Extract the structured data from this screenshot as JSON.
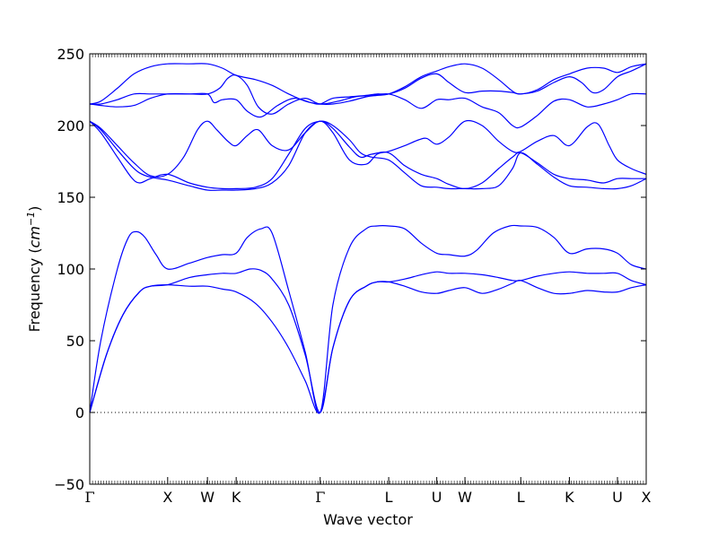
{
  "chart_data": {
    "type": "line",
    "xlabel": "Wave vector",
    "ylabel_text": "Frequency (",
    "ylabel_unit": "cm",
    "ylabel_exp": "−1",
    "ylabel_close": ")",
    "ylim": [
      -50,
      250
    ],
    "yticks": [
      -50,
      0,
      50,
      100,
      150,
      200,
      250
    ],
    "xlim": [
      0,
      10.07
    ],
    "xticks": [
      {
        "label": "Γ",
        "x": 0.0
      },
      {
        "label": "X",
        "x": 1.41
      },
      {
        "label": "W",
        "x": 2.13
      },
      {
        "label": "K",
        "x": 2.65
      },
      {
        "label": "Γ",
        "x": 4.17
      },
      {
        "label": "L",
        "x": 5.41
      },
      {
        "label": "U",
        "x": 6.28
      },
      {
        "label": "W",
        "x": 6.79
      },
      {
        "label": "L",
        "x": 7.8
      },
      {
        "label": "K",
        "x": 8.68
      },
      {
        "label": "U",
        "x": 9.55
      },
      {
        "label": "X",
        "x": 10.07
      }
    ],
    "zero_line": {
      "y": 0,
      "style": "dotted"
    },
    "grid": false,
    "line_color": "#0000ff",
    "series": [
      {
        "x": [
          0,
          0.3,
          0.6,
          0.9,
          1.1,
          1.41,
          1.8,
          2.13,
          2.4,
          2.65,
          3.0,
          3.3,
          3.6,
          3.9,
          4.17,
          4.4,
          4.7,
          5.0,
          5.2,
          5.41,
          5.7,
          6.0,
          6.28,
          6.5,
          6.79,
          7.1,
          7.4,
          7.65,
          7.8,
          8.1,
          8.4,
          8.68,
          9.0,
          9.3,
          9.55,
          9.8,
          10.07
        ],
        "y": [
          0,
          40,
          68,
          84,
          88,
          89,
          88,
          88,
          86,
          84,
          76,
          63,
          45,
          22,
          0,
          45,
          78,
          88,
          91,
          91,
          88,
          84,
          83,
          85,
          87,
          83,
          86,
          90,
          92,
          87,
          83,
          83,
          85,
          84,
          84,
          87,
          89
        ]
      },
      {
        "x": [
          0,
          0.3,
          0.6,
          0.9,
          1.1,
          1.41,
          1.8,
          2.13,
          2.4,
          2.65,
          2.9,
          3.1,
          3.3,
          3.6,
          3.9,
          4.17,
          4.4,
          4.7,
          5.0,
          5.2,
          5.41,
          5.7,
          6.0,
          6.28,
          6.5,
          6.79,
          7.1,
          7.4,
          7.65,
          7.8,
          8.1,
          8.4,
          8.68,
          9.0,
          9.3,
          9.55,
          9.8,
          10.07
        ],
        "y": [
          0,
          40,
          68,
          84,
          88,
          89,
          94,
          96,
          97,
          97,
          100,
          99,
          93,
          75,
          40,
          0,
          45,
          78,
          88,
          91,
          91,
          93,
          96,
          98,
          97,
          97,
          96,
          94,
          92,
          92,
          95,
          97,
          98,
          97,
          97,
          97,
          92,
          89
        ]
      },
      {
        "x": [
          0,
          0.2,
          0.5,
          0.7,
          0.85,
          1.0,
          1.2,
          1.41,
          1.8,
          2.13,
          2.4,
          2.65,
          2.85,
          3.1,
          3.3,
          3.6,
          3.9,
          4.17,
          4.4,
          4.7,
          5.0,
          5.2,
          5.41,
          5.7,
          6.0,
          6.28,
          6.5,
          6.79,
          7.0,
          7.3,
          7.6,
          7.8,
          8.1,
          8.4,
          8.68,
          9.0,
          9.3,
          9.55,
          9.8,
          10.07
        ],
        "y": [
          0,
          50,
          100,
          122,
          126,
          122,
          110,
          100,
          104,
          108,
          110,
          111,
          122,
          128,
          125,
          85,
          42,
          0,
          75,
          115,
          128,
          130,
          130,
          128,
          118,
          111,
          110,
          109,
          113,
          125,
          130,
          130,
          129,
          122,
          111,
          114,
          114,
          111,
          103,
          100
        ]
      },
      {
        "x": [
          0,
          0.2,
          0.5,
          0.75,
          0.9,
          1.1,
          1.41,
          1.8,
          2.13,
          2.4,
          2.65,
          3.0,
          3.3,
          3.6,
          3.9,
          4.17,
          4.4,
          4.7,
          4.9,
          5.1,
          5.41,
          5.7,
          6.0,
          6.28,
          6.5,
          6.79,
          7.1,
          7.4,
          7.65,
          7.8,
          8.1,
          8.4,
          8.68,
          9.0,
          9.3,
          9.55,
          9.8,
          10.07
        ],
        "y": [
          203,
          195,
          178,
          164,
          160,
          163,
          166,
          160,
          157,
          156,
          156,
          157,
          163,
          180,
          198,
          203,
          200,
          190,
          181,
          178,
          176,
          167,
          158,
          157,
          156,
          156,
          156,
          158,
          170,
          181,
          173,
          164,
          158,
          157,
          156,
          156,
          158,
          163
        ]
      },
      {
        "x": [
          0,
          0.2,
          0.5,
          0.75,
          0.9,
          1.1,
          1.41,
          1.8,
          2.13,
          2.4,
          2.65,
          3.0,
          3.3,
          3.6,
          3.9,
          4.17,
          4.4,
          4.7,
          4.9,
          5.1,
          5.41,
          5.7,
          6.0,
          6.28,
          6.5,
          6.79,
          7.1,
          7.4,
          7.65,
          7.8,
          8.1,
          8.4,
          8.68,
          9.0,
          9.3,
          9.55,
          9.8,
          10.07
        ],
        "y": [
          203,
          197,
          183,
          172,
          167,
          164,
          162,
          158,
          155,
          155,
          155,
          156,
          160,
          172,
          195,
          203,
          198,
          185,
          178,
          180,
          181,
          172,
          166,
          163,
          159,
          156,
          160,
          170,
          178,
          181,
          174,
          166,
          163,
          162,
          160,
          163,
          163,
          163
        ]
      },
      {
        "x": [
          0,
          0.2,
          0.5,
          0.8,
          1.1,
          1.41,
          1.7,
          1.95,
          2.13,
          2.3,
          2.5,
          2.65,
          2.85,
          3.05,
          3.3,
          3.6,
          3.9,
          4.17,
          4.4,
          4.7,
          5.0,
          5.2,
          5.41,
          5.7,
          5.95,
          6.1,
          6.28,
          6.5,
          6.79,
          7.1,
          7.4,
          7.65,
          7.8,
          8.1,
          8.4,
          8.68,
          9.0,
          9.2,
          9.4,
          9.55,
          9.8,
          10.07
        ],
        "y": [
          203,
          198,
          186,
          174,
          165,
          166,
          178,
          197,
          203,
          197,
          189,
          186,
          193,
          197,
          186,
          183,
          195,
          203,
          195,
          176,
          173,
          180,
          182,
          186,
          190,
          191,
          187,
          192,
          203,
          200,
          189,
          182,
          182,
          189,
          193,
          186,
          199,
          201,
          186,
          176,
          170,
          166
        ]
      },
      {
        "x": [
          0,
          0.2,
          0.5,
          0.8,
          1.1,
          1.41,
          1.8,
          2.13,
          2.35,
          2.5,
          2.65,
          2.85,
          3.05,
          3.3,
          3.6,
          3.9,
          4.17,
          4.5,
          4.8,
          5.1,
          5.41,
          5.7,
          6.0,
          6.28,
          6.5,
          6.79,
          7.1,
          7.4,
          7.65,
          7.8,
          8.1,
          8.4,
          8.68,
          9.0,
          9.3,
          9.55,
          9.8,
          10.07
        ],
        "y": [
          215,
          214,
          213,
          214,
          219,
          222,
          222,
          222,
          226,
          233,
          235,
          228,
          213,
          208,
          215,
          219,
          215,
          217,
          220,
          221,
          222,
          218,
          212,
          218,
          218,
          219,
          213,
          209,
          200,
          199,
          207,
          217,
          218,
          213,
          215,
          218,
          222,
          222
        ]
      },
      {
        "x": [
          0,
          0.2,
          0.5,
          0.8,
          1.1,
          1.41,
          1.8,
          2.13,
          2.25,
          2.4,
          2.65,
          2.85,
          3.1,
          3.4,
          3.7,
          4.0,
          4.17,
          4.4,
          4.7,
          5.0,
          5.2,
          5.41,
          5.7,
          6.0,
          6.28,
          6.5,
          6.79,
          7.1,
          7.4,
          7.65,
          7.8,
          8.1,
          8.4,
          8.68,
          8.9,
          9.1,
          9.3,
          9.55,
          9.8,
          10.07
        ],
        "y": [
          215,
          215,
          218,
          222,
          222,
          222,
          222,
          222,
          216,
          218,
          218,
          210,
          206,
          214,
          219,
          216,
          215,
          219,
          220,
          221,
          222,
          222,
          226,
          233,
          236,
          230,
          223,
          224,
          224,
          223,
          222,
          224,
          230,
          234,
          230,
          223,
          225,
          234,
          238,
          243
        ]
      },
      {
        "x": [
          0,
          0.2,
          0.5,
          0.8,
          1.1,
          1.41,
          1.8,
          2.13,
          2.4,
          2.65,
          3.0,
          3.3,
          3.6,
          3.9,
          4.17,
          4.4,
          4.7,
          5.0,
          5.2,
          5.41,
          5.7,
          6.0,
          6.28,
          6.5,
          6.79,
          7.1,
          7.4,
          7.65,
          7.8,
          8.1,
          8.4,
          8.68,
          9.0,
          9.3,
          9.55,
          9.8,
          10.07
        ],
        "y": [
          215,
          217,
          226,
          236,
          241,
          243,
          243,
          243,
          240,
          235,
          232,
          228,
          222,
          217,
          215,
          215,
          217,
          220,
          221,
          222,
          227,
          234,
          238,
          241,
          243,
          240,
          232,
          224,
          222,
          225,
          232,
          236,
          240,
          240,
          237,
          241,
          243
        ]
      }
    ]
  }
}
